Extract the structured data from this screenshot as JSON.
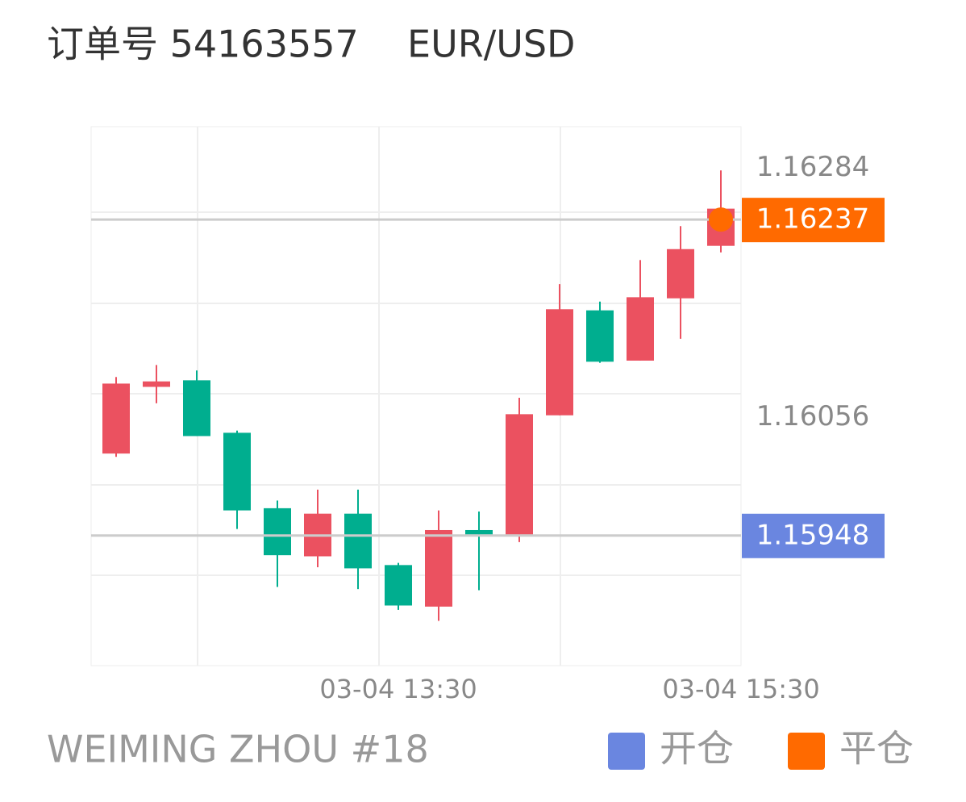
{
  "chart_data": {
    "type": "candlestick",
    "title": "订单号 54163557",
    "symbol": "EUR/USD",
    "x": [
      0,
      1,
      2,
      3,
      4,
      5,
      6,
      7,
      8,
      9,
      10,
      11,
      12,
      13,
      14,
      15
    ],
    "open": [
      1.16023,
      1.16084,
      1.1609,
      1.16042,
      1.15973,
      1.15929,
      1.15968,
      1.15921,
      1.15883,
      1.15953,
      1.15949,
      1.16058,
      1.16154,
      1.16108,
      1.16165,
      1.16213
    ],
    "high": [
      1.16093,
      1.16104,
      1.16099,
      1.16044,
      1.1598,
      1.1599,
      1.1599,
      1.15923,
      1.15971,
      1.1597,
      1.16074,
      1.16178,
      1.16162,
      1.162,
      1.16231,
      1.16282
    ],
    "low": [
      1.1602,
      1.16069,
      1.16039,
      1.15954,
      1.15901,
      1.15919,
      1.15899,
      1.1588,
      1.1587,
      1.15898,
      1.15942,
      1.16058,
      1.16106,
      1.16108,
      1.16128,
      1.16207
    ],
    "close": [
      1.16087,
      1.16089,
      1.16039,
      1.15971,
      1.1593,
      1.15968,
      1.15918,
      1.15884,
      1.15953,
      1.15949,
      1.16059,
      1.16155,
      1.16107,
      1.16166,
      1.1621,
      1.16247
    ],
    "up_color": "#eb5160",
    "down_color": "#00ae8f",
    "xlim": [
      -0.62,
      15.5
    ],
    "xticks": [
      {
        "value": 7,
        "label": "03-04 13:30"
      },
      {
        "value": 15.5,
        "label": "03-04 15:30"
      }
    ],
    "ylim": [
      1.15829,
      1.16322
    ],
    "yticks": [
      1.16056,
      1.16284
    ],
    "open_price": {
      "value": 1.15948,
      "color": "#6a86e0"
    },
    "close_price": {
      "value": 1.16237,
      "color": "#ff6a00"
    },
    "legend": [
      {
        "name": "开仓",
        "color": "#6a86e0"
      },
      {
        "name": "平仓",
        "color": "#ff6a00"
      }
    ],
    "footer": "WEIMING ZHOU #18"
  }
}
